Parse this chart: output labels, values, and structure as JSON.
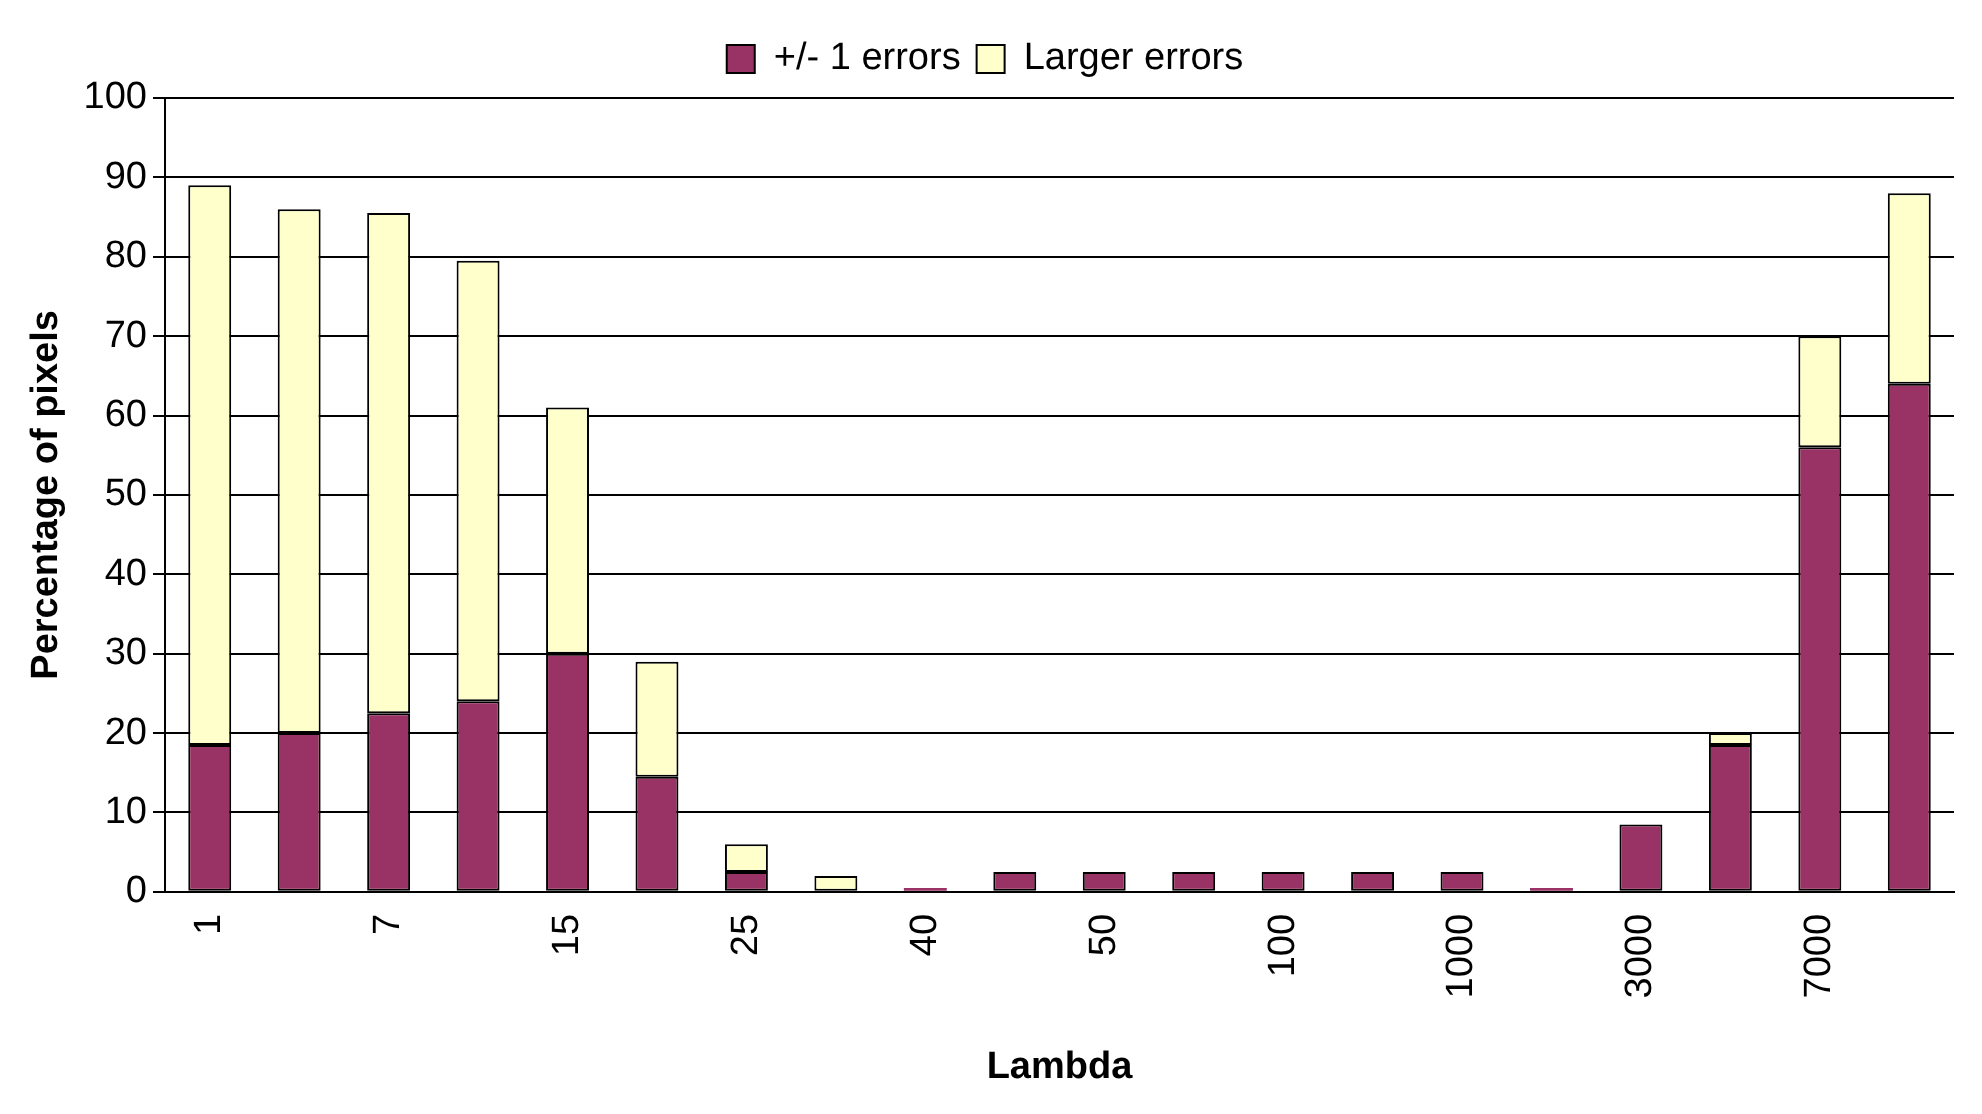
{
  "chart_data": {
    "type": "bar",
    "stacked": true,
    "xlabel": "Lambda",
    "ylabel": "Percentage of pixels",
    "categories": [
      "1",
      null,
      "7",
      null,
      "15",
      null,
      "25",
      null,
      "40",
      null,
      "50",
      null,
      "100",
      null,
      "1000",
      null,
      "3000",
      null,
      "7000",
      null
    ],
    "series": [
      {
        "name": "+/- 1 errors",
        "color": "#993366",
        "values": [
          18.5,
          20,
          22.5,
          24,
          30,
          14.5,
          2.5,
          null,
          0.5,
          2.5,
          2.5,
          2.5,
          2.5,
          2.5,
          2.5,
          0.5,
          8.5,
          18.5,
          56,
          64
        ]
      },
      {
        "name": "Larger errors",
        "color": "#ffffcc",
        "values": [
          70.5,
          66,
          63,
          55.5,
          31,
          14.5,
          3.5,
          2,
          null,
          null,
          null,
          null,
          null,
          null,
          null,
          null,
          null,
          1.5,
          14,
          24
        ]
      }
    ],
    "ylim": [
      0,
      100
    ],
    "yticks": [
      0,
      10,
      20,
      30,
      40,
      50,
      60,
      70,
      80,
      90,
      100
    ],
    "grid": "y",
    "legend": "top"
  }
}
